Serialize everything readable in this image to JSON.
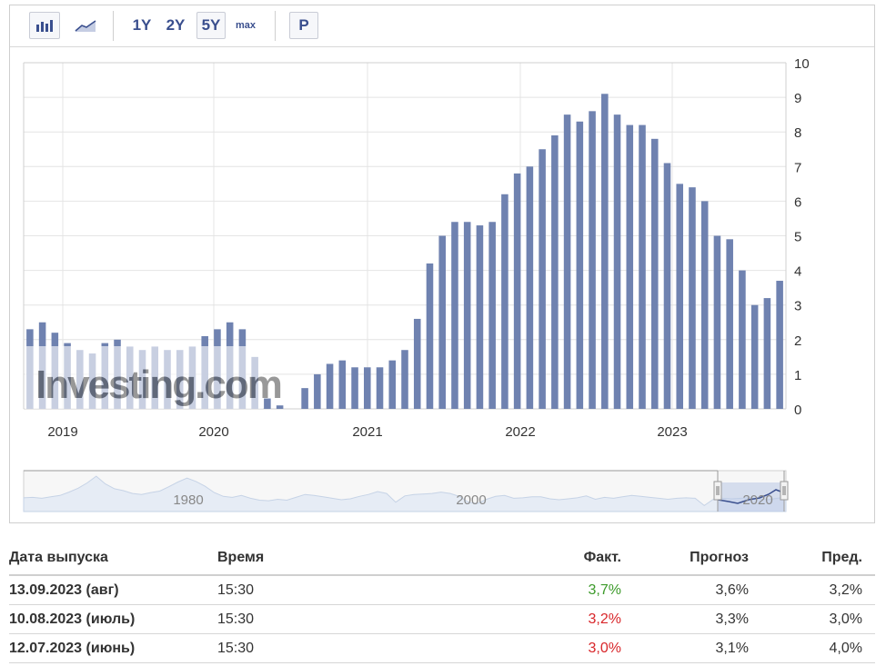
{
  "toolbar": {
    "bar_icon": "bar-chart-icon",
    "line_icon": "line-chart-icon",
    "ranges": [
      "1Y",
      "2Y",
      "5Y",
      "max"
    ],
    "active_range": "5Y",
    "p_label": "P"
  },
  "chart_data": {
    "type": "bar",
    "xlabel": "",
    "ylabel": "",
    "ylim": [
      0,
      10
    ],
    "y_ticks": [
      "0",
      "1",
      "2",
      "3",
      "4",
      "5",
      "6",
      "7",
      "8",
      "9",
      "10"
    ],
    "x_ticks": [
      "2019",
      "2020",
      "2021",
      "2022",
      "2023"
    ],
    "grid": true,
    "bar_color": "#6f82b0",
    "watermark": "Investing.com",
    "series": [
      {
        "values": [
          2.3,
          2.5,
          2.2,
          1.9,
          1.7,
          1.6,
          1.9,
          2.0,
          1.8,
          1.7,
          1.8,
          1.7,
          1.7,
          1.8,
          2.1,
          2.3,
          2.5,
          2.3,
          1.5,
          0.3,
          0.1,
          0.0,
          0.6,
          1.0,
          1.3,
          1.4,
          1.2,
          1.2,
          1.2,
          1.4,
          1.7,
          2.6,
          4.2,
          5.0,
          5.4,
          5.4,
          5.3,
          5.4,
          6.2,
          6.8,
          7.0,
          7.5,
          7.9,
          8.5,
          8.3,
          8.6,
          9.1,
          8.5,
          8.2,
          8.2,
          7.8,
          7.1,
          6.5,
          6.4,
          6.0,
          5.0,
          4.9,
          4.0,
          3.0,
          3.2,
          3.7
        ]
      }
    ],
    "navigator": {
      "labels": [
        "1980",
        "2000",
        "2020"
      ],
      "history": [
        2.1,
        2.2,
        2.0,
        2.3,
        2.6,
        3.3,
        4.1,
        5.2,
        6.6,
        5.0,
        4.0,
        3.6,
        3.0,
        2.8,
        3.2,
        3.5,
        4.4,
        5.4,
        6.2,
        5.5,
        4.5,
        3.2,
        2.4,
        2.2,
        2.6,
        2.0,
        1.6,
        1.5,
        1.8,
        1.6,
        2.2,
        2.8,
        2.6,
        2.3,
        2.0,
        1.7,
        1.9,
        2.4,
        2.8,
        3.4,
        3.0,
        1.2,
        2.5,
        2.8,
        2.9,
        3.0,
        3.3,
        3.0,
        2.4,
        1.2,
        0.9,
        1.8,
        2.4,
        2.6,
        2.0,
        2.1,
        2.3,
        2.3,
        1.9,
        1.7,
        1.9,
        2.1,
        2.5,
        1.8,
        2.2,
        2.0,
        2.3,
        2.6,
        2.4,
        2.2,
        2.0,
        1.8,
        2.0,
        2.1,
        2.0,
        0.5,
        1.8,
        2.0,
        1.9,
        2.0,
        2.1,
        1.9,
        1.7,
        2.0,
        2.2
      ]
    }
  },
  "table": {
    "headers": {
      "date": "Дата выпуска",
      "time": "Время",
      "actual": "Факт.",
      "forecast": "Прогноз",
      "previous": "Пред."
    },
    "rows": [
      {
        "date": "13.09.2023 (авг)",
        "time": "15:30",
        "actual": "3,7%",
        "actual_color": "#3c9a2a",
        "forecast": "3,6%",
        "previous": "3,2%"
      },
      {
        "date": "10.08.2023 (июль)",
        "time": "15:30",
        "actual": "3,2%",
        "actual_color": "#d8262a",
        "forecast": "3,3%",
        "previous": "3,0%"
      },
      {
        "date": "12.07.2023 (июнь)",
        "time": "15:30",
        "actual": "3,0%",
        "actual_color": "#d8262a",
        "forecast": "3,1%",
        "previous": "4,0%"
      }
    ]
  }
}
